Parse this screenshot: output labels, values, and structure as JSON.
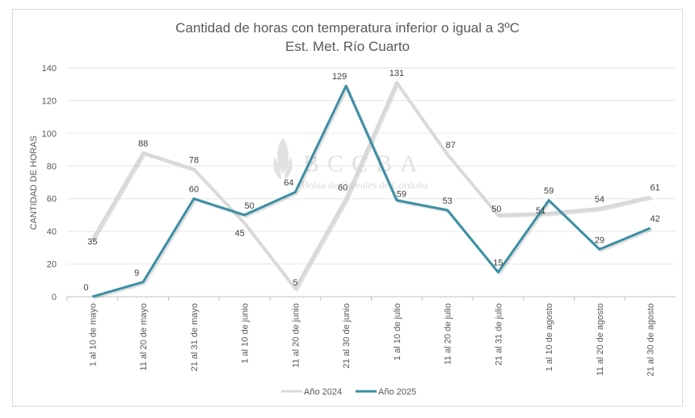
{
  "chart_data": {
    "type": "line",
    "title": "Cantidad de horas con temperatura inferior o igual a 3ºC",
    "subtitle": "Est. Met. Río Cuarto",
    "ylabel": "CANTIDAD DE HORAS",
    "xlabel": "",
    "ylim": [
      0,
      140
    ],
    "yticks": [
      0,
      20,
      40,
      60,
      80,
      100,
      120,
      140
    ],
    "grid": true,
    "legend": "bottom",
    "categories": [
      "1 al 10 de mayo",
      "11 al 20 de mayo",
      "21 al 31 de mayo",
      "1 al 10 de junio",
      "11 al 20 de junio",
      "21 al 30 de junio",
      "1 al 10 de julio",
      "11 al 20 de julio",
      "21 al 31 de julio",
      "1 al 10 de agosto",
      "11 al 20 de agosto",
      "21 al 30 de agosto"
    ],
    "series": [
      {
        "name": "Año  2024",
        "color": "#d9d9d9",
        "values": [
          35,
          88,
          78,
          45,
          5,
          60,
          131,
          87,
          50,
          51,
          54,
          61
        ]
      },
      {
        "name": "Año 2025",
        "color": "#3a8fa3",
        "values": [
          0,
          9,
          60,
          50,
          64,
          129,
          59,
          53,
          15,
          59,
          29,
          42
        ]
      }
    ]
  },
  "watermark": {
    "logo": "BCCBA",
    "text": "Bolsa de Cereales de Córdoba"
  }
}
